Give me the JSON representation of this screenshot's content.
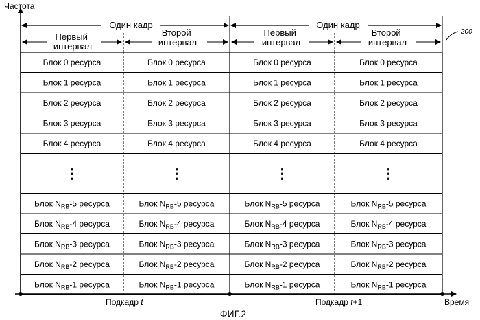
{
  "axes": {
    "y_label": "Частота",
    "x_label": "Время"
  },
  "frames": [
    {
      "label": "Один кадр"
    },
    {
      "label": "Один кадр"
    }
  ],
  "slots": [
    "Первый интервал",
    "Второй интервал",
    "Первый интервал",
    "Второй интервал"
  ],
  "slot_lines": [
    [
      "Первый",
      "интервал"
    ],
    [
      "Второй",
      "интервал"
    ],
    [
      "Первый",
      "интервал"
    ],
    [
      "Второй",
      "интервал"
    ]
  ],
  "rows_top": [
    "Блок 0 ресурса",
    "Блок 1 ресурса",
    "Блок 2 ресурса",
    "Блок 3 ресурса",
    "Блок 4 ресурса"
  ],
  "ellipsis": "⋮",
  "rows_bottom": [
    {
      "prefix": "Блок N",
      "sub": "RB",
      "suffix": "-5 ресурса"
    },
    {
      "prefix": "Блок N",
      "sub": "RB",
      "suffix": "-4 ресурса"
    },
    {
      "prefix": "Блок N",
      "sub": "RB",
      "suffix": "-3 ресурса"
    },
    {
      "prefix": "Блок N",
      "sub": "RB",
      "suffix": "-2 ресурса"
    },
    {
      "prefix": "Блок N",
      "sub": "RB",
      "suffix": "-1 ресурса"
    }
  ],
  "subframes": [
    {
      "label": "Подкадр ",
      "var": "t",
      "extra": ""
    },
    {
      "label": "Подкадр ",
      "var": "t",
      "extra": "+1"
    }
  ],
  "ref_number": "200",
  "figure_caption": "ФИГ.2"
}
